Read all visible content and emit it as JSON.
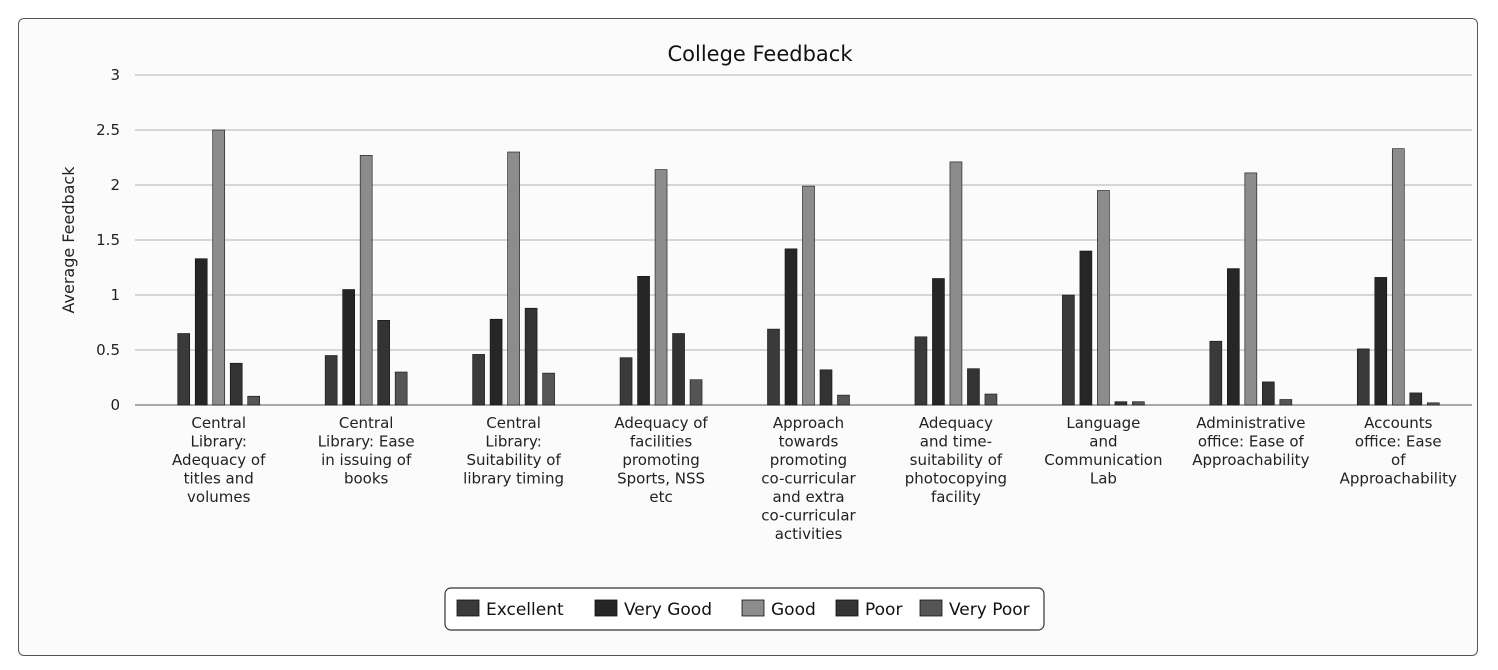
{
  "chart_data": {
    "type": "bar",
    "title": "College Feedback",
    "xlabel": "",
    "ylabel": "Average Feedback",
    "ylim": [
      0,
      3
    ],
    "yticks": [
      "0",
      "0.5",
      "1",
      "1.5",
      "2",
      "2.5",
      "3"
    ],
    "grid": true,
    "legend_position": "bottom",
    "categories": [
      [
        "Central",
        "Library:",
        "Adequacy of",
        "titles and",
        "volumes"
      ],
      [
        "Central",
        "Library: Ease",
        "in issuing of",
        "books"
      ],
      [
        "Central",
        "Library:",
        "Suitability of",
        "library timing"
      ],
      [
        "Adequacy of",
        "facilities",
        "promoting",
        "Sports, NSS",
        "etc"
      ],
      [
        "Approach",
        "towards",
        "promoting",
        "co-curricular",
        "and extra",
        "co-curricular",
        "activities"
      ],
      [
        "Adequacy",
        "and time-",
        "suitability of",
        "photocopying",
        "facility"
      ],
      [
        "Language",
        "and",
        "Communication",
        "Lab"
      ],
      [
        "Administrative",
        "office: Ease of",
        "Approachability"
      ],
      [
        "Accounts",
        "office: Ease",
        "of",
        "Approachability"
      ]
    ],
    "series": [
      {
        "name": "Excellent",
        "color": "#3a3a3a",
        "values": [
          0.65,
          0.45,
          0.46,
          0.43,
          0.69,
          0.62,
          1.0,
          0.58,
          0.51
        ]
      },
      {
        "name": "Very Good",
        "color": "#262626",
        "values": [
          1.33,
          1.05,
          0.78,
          1.17,
          1.42,
          1.15,
          1.4,
          1.24,
          1.16
        ]
      },
      {
        "name": "Good",
        "color": "#8c8c8c",
        "values": [
          2.5,
          2.27,
          2.3,
          2.14,
          1.99,
          2.21,
          1.95,
          2.11,
          2.33
        ]
      },
      {
        "name": "Poor",
        "color": "#333333",
        "values": [
          0.38,
          0.77,
          0.88,
          0.65,
          0.32,
          0.33,
          0.03,
          0.21,
          0.11
        ]
      },
      {
        "name": "Very Poor",
        "color": "#555555",
        "values": [
          0.08,
          0.3,
          0.29,
          0.23,
          0.09,
          0.1,
          0.03,
          0.05,
          0.02
        ]
      }
    ]
  }
}
